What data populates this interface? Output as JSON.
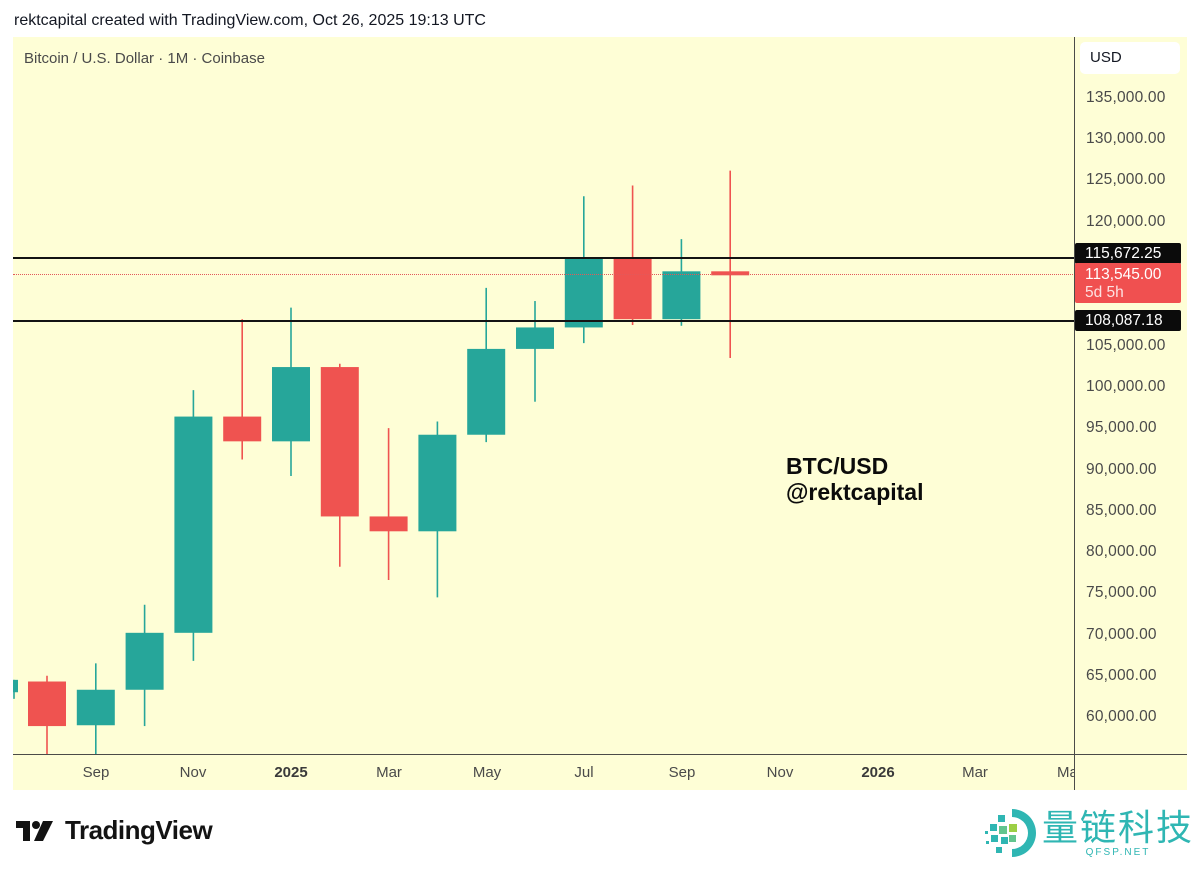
{
  "header": {
    "credit": "rektcapital created with TradingView.com, Oct 26, 2025 19:13 UTC"
  },
  "chart": {
    "symbol_title": "Bitcoin / U.S. Dollar · 1M · Coinbase",
    "currency_button": "USD",
    "annotation_line1": "BTC/USD",
    "annotation_line2": "@rektcapital",
    "colors": {
      "background": "#fefed6",
      "up": "#26a69a",
      "down": "#ef5350",
      "level_line": "#131313",
      "price_line": "#e2595a"
    },
    "price_ticks": [
      "135,000.00",
      "130,000.00",
      "125,000.00",
      "120,000.00",
      "105,000.00",
      "100,000.00",
      "95,000.00",
      "90,000.00",
      "85,000.00",
      "80,000.00",
      "75,000.00",
      "70,000.00",
      "65,000.00",
      "60,000.00"
    ],
    "labels": {
      "resistance": "115,672.25",
      "current_price": "113,545.00",
      "countdown": "5d 5h",
      "support": "108,087.18"
    },
    "time_ticks": [
      {
        "label": "Sep",
        "bold": false
      },
      {
        "label": "Nov",
        "bold": false
      },
      {
        "label": "2025",
        "bold": true
      },
      {
        "label": "Mar",
        "bold": false
      },
      {
        "label": "May",
        "bold": false
      },
      {
        "label": "Jul",
        "bold": false
      },
      {
        "label": "Sep",
        "bold": false
      },
      {
        "label": "Nov",
        "bold": false
      },
      {
        "label": "2026",
        "bold": true
      },
      {
        "label": "Mar",
        "bold": false
      },
      {
        "label": "Ma",
        "bold": false
      }
    ]
  },
  "footer": {
    "tv_wordmark": "TradingView",
    "watermark_cn": "量链科技",
    "watermark_en": "QFSP.NET"
  },
  "chart_data": {
    "type": "candlestick",
    "title": "Bitcoin / U.S. Dollar · 1M · Coinbase",
    "xlabel": "",
    "ylabel": "USD",
    "ylim": [
      55000,
      139000
    ],
    "grid": false,
    "categories": [
      "Jul 2024",
      "Aug 2024",
      "Sep 2024",
      "Oct 2024",
      "Nov 2024",
      "Dec 2024",
      "Jan 2025",
      "Feb 2025",
      "Mar 2025",
      "Apr 2025",
      "May 2025",
      "Jun 2025",
      "Jul 2025",
      "Aug 2025",
      "Sep 2025",
      "Oct 2025"
    ],
    "ohlc": [
      {
        "x": "Jul 2024",
        "open": 63000,
        "high": 64500,
        "low": 62200,
        "close": 64500,
        "partial": true
      },
      {
        "x": "Aug 2024",
        "open": 64300,
        "high": 65000,
        "low": 49000,
        "close": 58900
      },
      {
        "x": "Sep 2024",
        "open": 59000,
        "high": 66500,
        "low": 52500,
        "close": 63300
      },
      {
        "x": "Oct 2024",
        "open": 63300,
        "high": 73600,
        "low": 58900,
        "close": 70200
      },
      {
        "x": "Nov 2024",
        "open": 70200,
        "high": 99600,
        "low": 66800,
        "close": 96400
      },
      {
        "x": "Dec 2024",
        "open": 96400,
        "high": 108200,
        "low": 91200,
        "close": 93400
      },
      {
        "x": "Jan 2025",
        "open": 93400,
        "high": 109600,
        "low": 89200,
        "close": 102400
      },
      {
        "x": "Feb 2025",
        "open": 102400,
        "high": 102800,
        "low": 78200,
        "close": 84300
      },
      {
        "x": "Mar 2025",
        "open": 84300,
        "high": 95000,
        "low": 76600,
        "close": 82500
      },
      {
        "x": "Apr 2025",
        "open": 82500,
        "high": 95800,
        "low": 74500,
        "close": 94200
      },
      {
        "x": "May 2025",
        "open": 94200,
        "high": 112000,
        "low": 93300,
        "close": 104600
      },
      {
        "x": "Jun 2025",
        "open": 104600,
        "high": 110400,
        "low": 98200,
        "close": 107200
      },
      {
        "x": "Jul 2025",
        "open": 107200,
        "high": 123100,
        "low": 105300,
        "close": 115700
      },
      {
        "x": "Aug 2025",
        "open": 115700,
        "high": 124400,
        "low": 107500,
        "close": 108200
      },
      {
        "x": "Sep 2025",
        "open": 108200,
        "high": 117900,
        "low": 107400,
        "close": 114000
      },
      {
        "x": "Oct 2025",
        "open": 114000,
        "high": 126200,
        "low": 103500,
        "close": 113545
      }
    ],
    "horizontal_levels": [
      {
        "name": "resistance",
        "value": 115672.25,
        "style": "solid"
      },
      {
        "name": "support",
        "value": 108087.18,
        "style": "solid"
      },
      {
        "name": "last_price",
        "value": 113545.0,
        "style": "dotted"
      }
    ],
    "annotations": [
      "BTC/USD",
      "@rektcapital"
    ],
    "legend": []
  }
}
